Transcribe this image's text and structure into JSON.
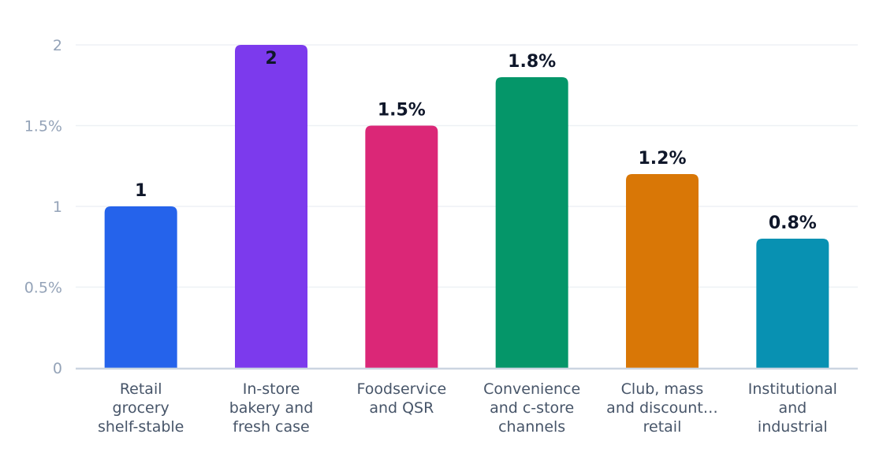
{
  "chart_data": {
    "type": "bar",
    "categories": [
      [
        "Retail",
        "grocery",
        "shelf-stable"
      ],
      [
        "In-store",
        "bakery and",
        "fresh case"
      ],
      [
        "Foodservice",
        "and QSR"
      ],
      [
        "Convenience",
        "and c-store",
        "channels"
      ],
      [
        "Club, mass",
        "and discount…",
        "retail"
      ],
      [
        "Institutional",
        "and",
        "industrial"
      ]
    ],
    "values": [
      1,
      2,
      1.5,
      1.8,
      1.2,
      0.8
    ],
    "data_labels": [
      "1",
      "2",
      "1.5%",
      "1.8%",
      "1.2%",
      "0.8%"
    ],
    "colors": [
      "#2563eb",
      "#7c3aed",
      "#db2777",
      "#059669",
      "#d97706",
      "#0891b2"
    ],
    "y_ticks": [
      0,
      0.5,
      1,
      1.5,
      2
    ],
    "y_tick_labels": [
      "0",
      "0.5%",
      "1",
      "1.5%",
      "2"
    ],
    "ylim": [
      0,
      2
    ],
    "grid": true,
    "title": "",
    "xlabel": "",
    "ylabel": ""
  }
}
